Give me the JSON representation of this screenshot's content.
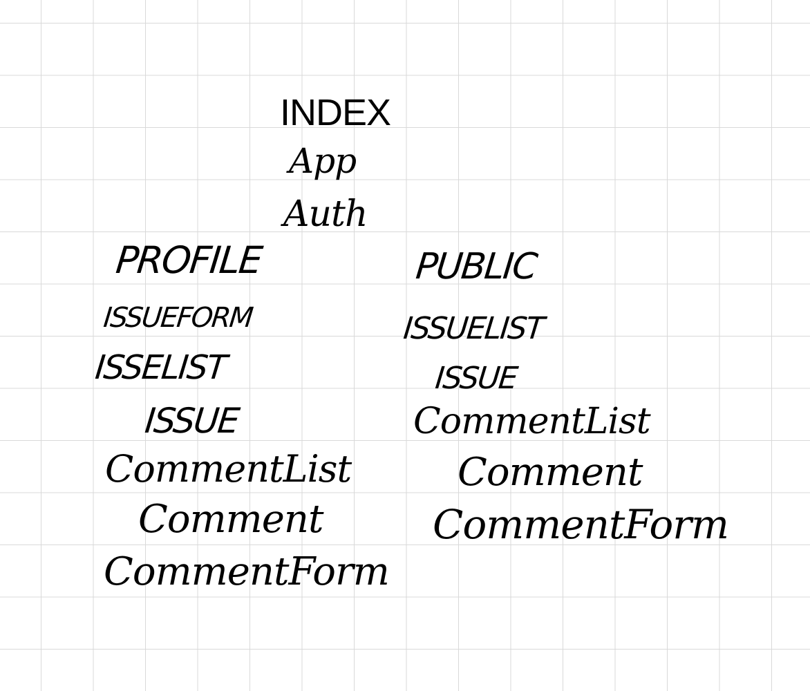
{
  "title": "INDEX",
  "root": [
    "App",
    "Auth"
  ],
  "profile": {
    "title": "PROFILE",
    "items": [
      "ISSUEFORM",
      "ISSELIST",
      "ISSUE",
      "CommentList",
      "Comment",
      "CommentForm"
    ]
  },
  "public": {
    "title": "PUBLIC",
    "items": [
      "ISSUELIST",
      "ISSUE",
      "CommentList",
      "Comment",
      "CommentForm"
    ]
  }
}
